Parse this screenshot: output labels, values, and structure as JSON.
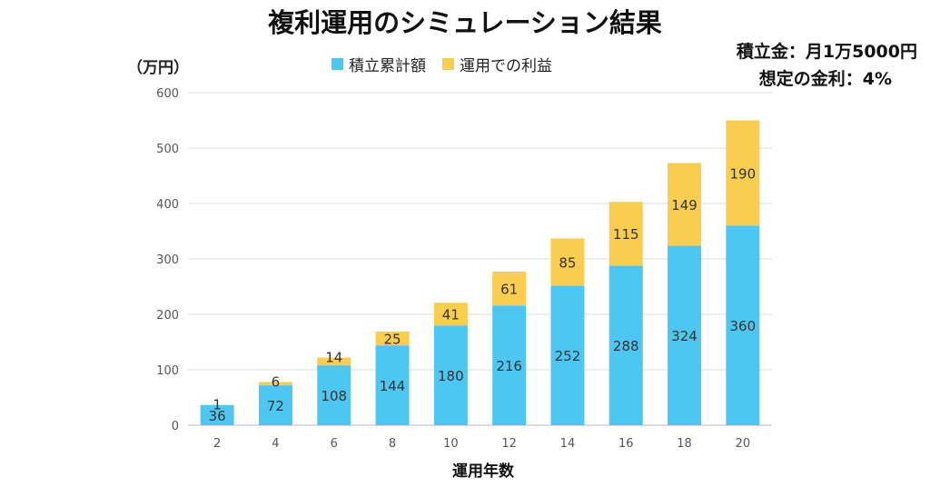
{
  "title": "複利運用のシミュレーション結果",
  "note_line1": "積立金：月1万5000円",
  "note_line2": "想定の金利：4%",
  "colors": {
    "contribution": "#4ec6f2",
    "profit": "#f9cd4f",
    "grid": "#dddddd"
  },
  "chart_data": {
    "type": "bar",
    "stacked": true,
    "ylabel": "（万円）",
    "xlabel": "運用年数",
    "categories": [
      "2",
      "4",
      "6",
      "8",
      "10",
      "12",
      "14",
      "16",
      "18",
      "20"
    ],
    "series": [
      {
        "name": "積立累計額",
        "values": [
          36,
          72,
          108,
          144,
          180,
          216,
          252,
          288,
          324,
          360
        ]
      },
      {
        "name": "運用での利益",
        "values": [
          1,
          6,
          14,
          25,
          41,
          61,
          85,
          115,
          149,
          190
        ]
      }
    ],
    "ylim": [
      0,
      600
    ],
    "yticks": [
      "0",
      "100",
      "200",
      "300",
      "400",
      "500",
      "600"
    ],
    "grid": true,
    "legend_position": "top-center"
  }
}
